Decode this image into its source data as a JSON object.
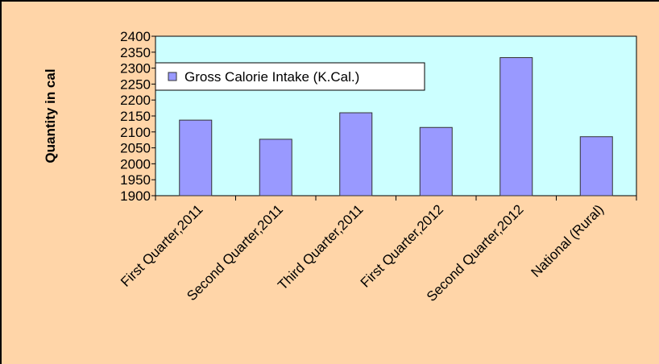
{
  "chart_data": {
    "type": "bar",
    "y_label": "Quantity in cal",
    "categories": [
      "First Quarter,2011",
      "Second Quarter,2011",
      "Third Quarter,2011",
      "First Quarter,2012",
      "Second Quarter,2012",
      "National (Rural)"
    ],
    "series": [
      {
        "name": "Gross Calorie Intake (K.Cal.)",
        "color": "#9999ff",
        "values": [
          2137,
          2077,
          2160,
          2114,
          2333,
          2085
        ]
      }
    ],
    "ylim": [
      1900,
      2400
    ],
    "yticks": [
      1900,
      1950,
      2000,
      2050,
      2100,
      2150,
      2200,
      2250,
      2300,
      2350,
      2400
    ],
    "legend": "upper-left"
  }
}
